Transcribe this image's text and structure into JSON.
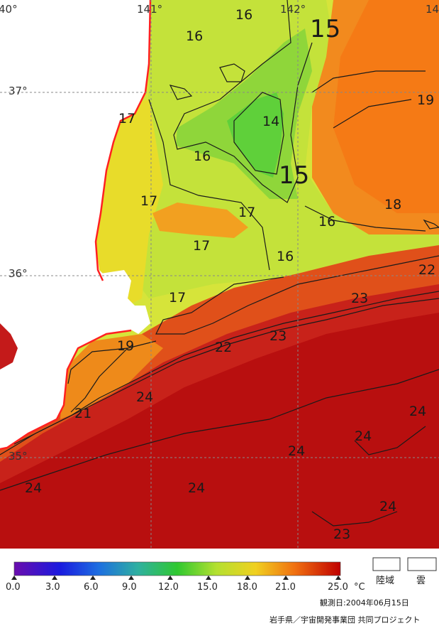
{
  "map": {
    "lon_labels": [
      "40°",
      "141°",
      "142°",
      "14"
    ],
    "lat_labels": [
      "37°",
      "36°",
      "35°"
    ],
    "isotherm_labels": [
      "16",
      "16",
      "15",
      "19",
      "17",
      "14",
      "16",
      "15",
      "17",
      "18",
      "17",
      "16",
      "17",
      "16",
      "22",
      "17",
      "23",
      "19",
      "22",
      "23",
      "24",
      "21",
      "24",
      "24",
      "24",
      "24",
      "23",
      "23",
      "15"
    ]
  },
  "legend": {
    "ticks": [
      "0.0",
      "3.0",
      "6.0",
      "9.0",
      "12.0",
      "15.0",
      "18.0",
      "21.0",
      "25.0"
    ],
    "unit": "°C",
    "colors": [
      "#6a0dad",
      "#1a1adf",
      "#1d6fe0",
      "#2fb0a0",
      "#30c830",
      "#b4e030",
      "#f0d020",
      "#f07010",
      "#c00000"
    ],
    "land_label": "陸域",
    "cloud_label": "雲"
  },
  "footer": {
    "date": "観測日:2004年06月15日",
    "credit": "岩手県／宇宙開発事業団 共同プロジェクト"
  }
}
